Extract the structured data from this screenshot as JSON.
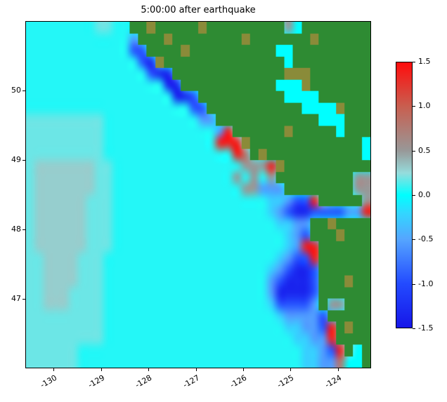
{
  "figure": {
    "title": "5:00:00 after earthquake",
    "x_tick_labels": [
      "-130",
      "-129",
      "-128",
      "-127",
      "-126",
      "-125",
      "-124"
    ],
    "y_tick_labels": [
      "50",
      "49",
      "48",
      "47"
    ],
    "colorbar_tick_labels": [
      "1.5",
      "1.0",
      "0.5",
      "0.0",
      "-0.5",
      "-1.0",
      "-1.5"
    ]
  },
  "chart_data": {
    "type": "heatmap",
    "title": "5:00:00 after earthquake",
    "xlabel": "",
    "ylabel": "",
    "x_range": [
      -130.6,
      -123.3
    ],
    "y_range": [
      46.0,
      51.0
    ],
    "x_ticks": [
      -130,
      -129,
      -128,
      -127,
      -126,
      -125,
      -124
    ],
    "y_ticks": [
      50,
      49,
      48,
      47
    ],
    "grid_on": false,
    "colorbar": {
      "min": -1.5,
      "max": 1.5,
      "ticks": [
        1.5,
        1.0,
        0.5,
        0.0,
        -0.5,
        -1.0,
        -1.5
      ],
      "position": "right"
    },
    "colormap_stops": [
      [
        -1.5,
        "#1616e8"
      ],
      [
        -1.0,
        "#234bff"
      ],
      [
        -0.5,
        "#55a5ff"
      ],
      [
        -0.2,
        "#32d7ff"
      ],
      [
        0.0,
        "#00ffff"
      ],
      [
        0.25,
        "#96dcdc"
      ],
      [
        0.5,
        "#989898"
      ],
      [
        1.0,
        "#c85f50"
      ],
      [
        1.5,
        "#ff0c0c"
      ]
    ],
    "land_colors": {
      "G": "#2e8b33",
      "O": "#8a8b39"
    },
    "value_key": {
      ".": 0.06,
      "a": 0.18,
      "b": 0.3,
      "c": -0.25,
      "d": -0.55,
      "e": -0.95,
      "f": -1.35,
      "g": 0.5,
      "s": 0.8,
      "r": 1.4,
      "C": 0.0
    },
    "grid": [
      "........aa..GGOGGGGGOGGGGGGGGGgCGGGGGGGG",
      "............dGGGOGGGGGGGGOGGGGGGGOGGGGGG",
      "............eeGGGGOGGGGGGGGGGCCGGGGGGGGG",
      ".............efOGGGGGGGGGGGGGGCGGGGGGGGG",
      "..............effGGGGGGGGGGGGGOOOGGGGGGG",
      "................ffGGGGGGGGGGGCCCOGGGGGGG",
      ".................ffeGGGGGGGGGGCCCCGGGGGG",
      "...................eeGGGGGGGGGGGCCCCOGGG",
      "aaaaaaaaa...........ddGGGGGGGGGGGGCCCGGG",
      "aaaaaaaaa.............drGGGGGGOGGGGGCGGG",
      "aaaaaaaaa.............rrrOGGGGGGGGGGGGGC",
      "aaaaaaaaa...............rsGOGGGGGGGGGGGC",
      "abbbbbbbaa...............gggrOGGGGGGGGGG",
      "abbbbbbbaa..............g.g.gGGGGGGGGGgg",
      "abbbbbbbaa...............ggdddGGGGGGGGgg",
      "abbbbbbaaa..................ccdeerGGGGGg",
      "abbbbbbaaa..................cdeffeeeeddr",
      "abbbbbbaaa...................ccddGGOGGGG",
      "abbbbbbaaa....................cdeGGGOGGG",
      "abbbbbbaaa....................cdrrGGGGGG",
      "aabbbbaaa....................cdeerGGGGGG",
      "aabbbbaaa...................cdeffeGGGGGG",
      "aabbbbaaa...................defffeGGGOGG",
      "aabbbaaaa...................dffffeGGGGGG",
      "aabbbaaaa...................ceeeedGggGGG",
      "aaaaaaaaa....................cddddeGGGGG",
      "aaaaaaaaa.....................ccdderGOGG",
      "aaaaaaaaa......................ccddrGGGG",
      "aaaaaa..........................ccderGCG",
      "aaaaaa..........................ccddsCCG"
    ]
  }
}
